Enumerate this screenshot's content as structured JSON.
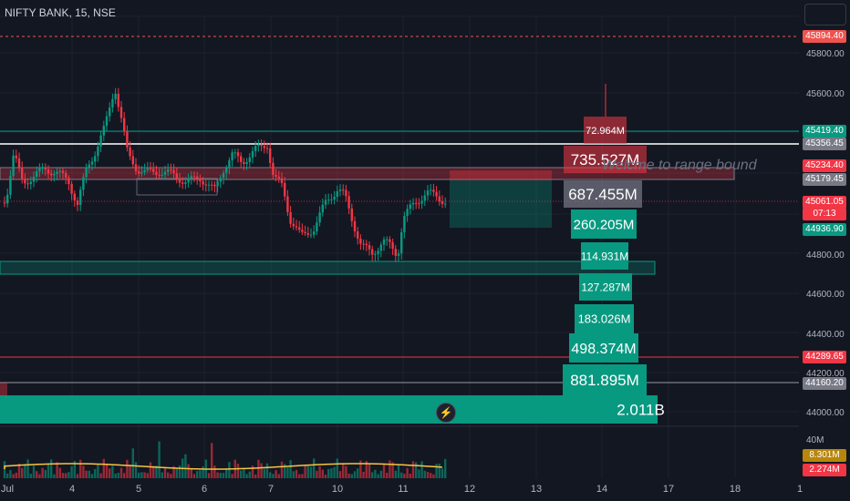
{
  "symbol_title": "NIFTY BANK, 15, NSE",
  "annotation": "Welcme to range bound",
  "price_axis": {
    "ticks": [
      "45800.00",
      "45600.00",
      "44800.00",
      "44600.00",
      "44400.00",
      "44200.00",
      "44000.00"
    ]
  },
  "price_labels": [
    {
      "value": "45894.40",
      "color": "#ef5350"
    },
    {
      "value": "45419.40",
      "color": "#089981"
    },
    {
      "value": "45356.45",
      "color": "#787b86"
    },
    {
      "value": "45234.40",
      "color": "#f23645"
    },
    {
      "value": "45179.45",
      "color": "#787b86"
    },
    {
      "value": "45061.05",
      "color": "#f23645"
    },
    {
      "value": "07:13",
      "color": "#f23645"
    },
    {
      "value": "44936.90",
      "color": "#089981"
    },
    {
      "value": "44289.65",
      "color": "#f23645"
    },
    {
      "value": "44160.20",
      "color": "#787b86"
    }
  ],
  "volume_labels": {
    "axis": "40M",
    "sma": "8.301M",
    "volume": "2.274M"
  },
  "time_axis": [
    "Jul",
    "4",
    "5",
    "6",
    "7",
    "10",
    "11",
    "12",
    "13",
    "14",
    "17",
    "18",
    "1"
  ],
  "volume_profile": [
    "72.964M",
    "735.527M",
    "687.455M",
    "260.205M",
    "114.931M",
    "127.287M",
    "183.026M",
    "498.374M",
    "881.895M",
    "2.011B"
  ],
  "colors": {
    "bull": "#089981",
    "bear": "#f23645",
    "background": "#131722"
  }
}
